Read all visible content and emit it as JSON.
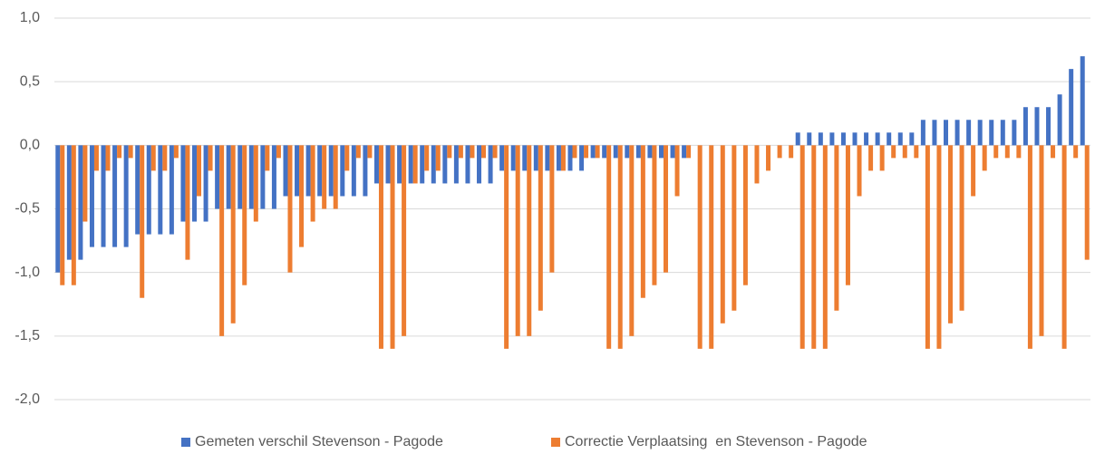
{
  "chart_data": {
    "type": "bar",
    "categories": [
      null,
      null,
      null,
      null,
      null,
      null,
      null,
      null,
      null,
      null,
      null,
      null,
      null,
      null,
      null,
      null,
      null,
      null,
      null,
      null,
      null,
      null,
      null,
      null,
      null,
      null,
      null,
      null,
      null,
      null,
      null,
      null,
      null,
      null,
      null,
      null,
      null,
      null,
      null,
      null,
      null,
      null,
      null,
      null,
      null,
      null,
      null,
      null,
      null,
      null,
      null,
      null,
      null,
      null,
      null,
      null,
      null,
      null,
      null,
      null,
      null,
      null,
      null,
      null,
      null,
      null,
      null,
      null,
      null,
      null,
      null,
      null,
      null,
      null,
      null,
      null,
      null,
      null,
      null,
      null,
      null,
      null,
      null,
      null,
      null,
      null,
      null,
      null,
      null,
      null,
      null
    ],
    "series": [
      {
        "name": "Gemeten verschil Stevenson - Pagode",
        "color": "#4472c4",
        "values": [
          -1.0,
          -0.9,
          -0.9,
          -0.8,
          -0.8,
          -0.8,
          -0.8,
          -0.7,
          -0.7,
          -0.7,
          -0.7,
          -0.6,
          -0.6,
          -0.6,
          -0.5,
          -0.5,
          -0.5,
          -0.5,
          -0.5,
          -0.5,
          -0.4,
          -0.4,
          -0.4,
          -0.4,
          -0.4,
          -0.4,
          -0.4,
          -0.4,
          -0.3,
          -0.3,
          -0.3,
          -0.3,
          -0.3,
          -0.3,
          -0.3,
          -0.3,
          -0.3,
          -0.3,
          -0.3,
          -0.2,
          -0.2,
          -0.2,
          -0.2,
          -0.2,
          -0.2,
          -0.2,
          -0.2,
          -0.1,
          -0.1,
          -0.1,
          -0.1,
          -0.1,
          -0.1,
          -0.1,
          -0.1,
          -0.1,
          0,
          0,
          0,
          0,
          0,
          0,
          0,
          0,
          0,
          0.1,
          0.1,
          0.1,
          0.1,
          0.1,
          0.1,
          0.1,
          0.1,
          0.1,
          0.1,
          0.1,
          0.2,
          0.2,
          0.2,
          0.2,
          0.2,
          0.2,
          0.2,
          0.2,
          0.2,
          0.3,
          0.3,
          0.3,
          0.4,
          0.6,
          0.7
        ]
      },
      {
        "name": "Correctie Verplaatsing  en Stevenson - Pagode",
        "color": "#ed7d31",
        "values": [
          -1.1,
          -1.1,
          -0.6,
          -0.2,
          -0.2,
          -0.1,
          -0.1,
          -1.2,
          -0.2,
          -0.2,
          -0.1,
          -0.9,
          -0.4,
          -0.2,
          -1.5,
          -1.4,
          -1.1,
          -0.6,
          -0.2,
          -0.1,
          -1.0,
          -0.8,
          -0.6,
          -0.5,
          -0.5,
          -0.2,
          -0.1,
          -0.1,
          -1.6,
          -1.6,
          -1.5,
          -0.3,
          -0.2,
          -0.2,
          -0.1,
          -0.1,
          -0.1,
          -0.1,
          -0.1,
          -1.6,
          -1.5,
          -1.5,
          -1.3,
          -1.0,
          -0.2,
          -0.1,
          -0.1,
          -0.1,
          -1.6,
          -1.6,
          -1.5,
          -1.2,
          -1.1,
          -1.0,
          -0.4,
          -0.1,
          -1.6,
          -1.6,
          -1.4,
          -1.3,
          -1.1,
          -0.3,
          -0.2,
          -0.1,
          -0.1,
          -1.6,
          -1.6,
          -1.6,
          -1.3,
          -1.1,
          -0.4,
          -0.2,
          -0.2,
          -0.1,
          -0.1,
          -0.1,
          -1.6,
          -1.6,
          -1.4,
          -1.3,
          -0.4,
          -0.2,
          -0.1,
          -0.1,
          -0.1,
          -1.6,
          -1.5,
          -0.1,
          -1.6,
          -0.1,
          -0.9
        ]
      }
    ],
    "ylim": [
      -2.0,
      1.0
    ],
    "yticks": [
      {
        "value": 1.0,
        "label": "1,0"
      },
      {
        "value": 0.5,
        "label": "0,5"
      },
      {
        "value": 0.0,
        "label": "0,0"
      },
      {
        "value": -0.5,
        "label": "-0,5"
      },
      {
        "value": -1.0,
        "label": "-1,0"
      },
      {
        "value": -1.5,
        "label": "-1,5"
      },
      {
        "value": -2.0,
        "label": "-2,0"
      }
    ],
    "grid": true,
    "legend": "bottom"
  }
}
